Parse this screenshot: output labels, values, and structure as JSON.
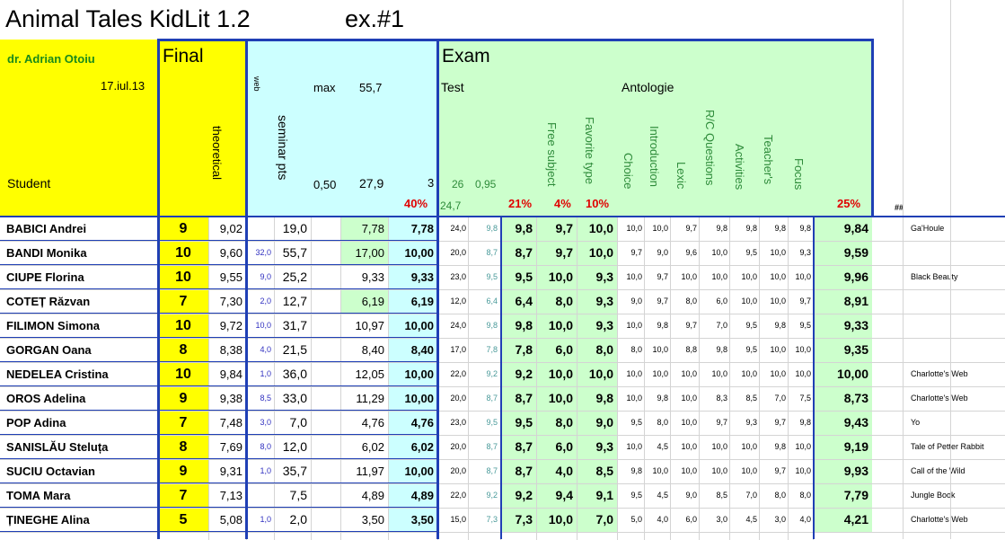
{
  "title": "Animal Tales KidLit 1.2",
  "exercise": "ex.#1",
  "author": "dr. Adrian Otoiu",
  "date": "17.iul.13",
  "student_label": "Student",
  "final_label": "Final",
  "theoretical_label": "theoretical",
  "web_label": "web",
  "seminar_label": "seminar pts",
  "max_label": "max",
  "max_value": "55,7",
  "half_label": "0,50",
  "half_value": "27,9",
  "three": "3",
  "pct_40": "40%",
  "exam_label": "Exam",
  "test_label": "Test",
  "antologie_label": "Antologie",
  "test_sub1": "26",
  "test_sub2": "0,95",
  "test_sub3": "24,7",
  "pct_21": "21%",
  "pct_4": "4%",
  "pct_10": "10%",
  "pct_25": "25%",
  "hash": "##",
  "criteria": [
    "Free subject",
    "Favorite type",
    "Choice",
    "Introduction",
    "Lexic",
    "R/C Questions",
    "Activities",
    "Teacher's",
    "Focus"
  ],
  "students": [
    {
      "name": "BABICI Andrei",
      "final": "9",
      "theor": "9,02",
      "web": "",
      "sem": "19,0",
      "pts": "7,78",
      "ptsB": "7,78",
      "t1": "24,0",
      "t2": "9,8",
      "t3": "9,8",
      "fs": "9,7",
      "ft": "10,0",
      "c": [
        "10,0",
        "10,0",
        "9,7",
        "9,8",
        "9,8",
        "9,8",
        "9,8"
      ],
      "total": "9,84",
      "book": "Ga'Houle"
    },
    {
      "name": "BANDI Monika",
      "final": "10",
      "theor": "9,60",
      "web": "32,0",
      "sem": "55,7",
      "pts": "17,00",
      "ptsB": "10,00",
      "t1": "20,0",
      "t2": "8,7",
      "t3": "8,7",
      "fs": "9,7",
      "ft": "10,0",
      "c": [
        "9,7",
        "9,0",
        "9,6",
        "10,0",
        "9,5",
        "10,0",
        "9,3"
      ],
      "total": "9,59",
      "book": ""
    },
    {
      "name": "CIUPE Florina",
      "final": "10",
      "theor": "9,55",
      "web": "9,0",
      "sem": "25,2",
      "pts": "9,33",
      "ptsB": "9,33",
      "t1": "23,0",
      "t2": "9,5",
      "t3": "9,5",
      "fs": "10,0",
      "ft": "9,3",
      "c": [
        "10,0",
        "9,7",
        "10,0",
        "10,0",
        "10,0",
        "10,0",
        "10,0"
      ],
      "total": "9,96",
      "book": "Black Beauty"
    },
    {
      "name": "COTEȚ Răzvan",
      "final": "7",
      "theor": "7,30",
      "web": "2,0",
      "sem": "12,7",
      "pts": "6,19",
      "ptsB": "6,19",
      "t1": "12,0",
      "t2": "6,4",
      "t3": "6,4",
      "fs": "8,0",
      "ft": "9,3",
      "c": [
        "9,0",
        "9,7",
        "8,0",
        "6,0",
        "10,0",
        "10,0",
        "9,7"
      ],
      "total": "8,91",
      "book": ""
    },
    {
      "name": "FILIMON Simona",
      "final": "10",
      "theor": "9,72",
      "web": "10,0",
      "sem": "31,7",
      "pts": "10,97",
      "ptsB": "10,00",
      "t1": "24,0",
      "t2": "9,8",
      "t3": "9,8",
      "fs": "10,0",
      "ft": "9,3",
      "c": [
        "10,0",
        "9,8",
        "9,7",
        "7,0",
        "9,5",
        "9,8",
        "9,5"
      ],
      "total": "9,33",
      "book": ""
    },
    {
      "name": "GORGAN Oana",
      "final": "8",
      "theor": "8,38",
      "web": "4,0",
      "sem": "21,5",
      "pts": "8,40",
      "ptsB": "8,40",
      "t1": "17,0",
      "t2": "7,8",
      "t3": "7,8",
      "fs": "6,0",
      "ft": "8,0",
      "c": [
        "8,0",
        "10,0",
        "8,8",
        "9,8",
        "9,5",
        "10,0",
        "10,0"
      ],
      "total": "9,35",
      "book": ""
    },
    {
      "name": "NEDELEA Cristina",
      "final": "10",
      "theor": "9,84",
      "web": "1,0",
      "sem": "36,0",
      "pts": "12,05",
      "ptsB": "10,00",
      "t1": "22,0",
      "t2": "9,2",
      "t3": "9,2",
      "fs": "10,0",
      "ft": "10,0",
      "c": [
        "10,0",
        "10,0",
        "10,0",
        "10,0",
        "10,0",
        "10,0",
        "10,0"
      ],
      "total": "10,00",
      "book": "Charlotte's Web"
    },
    {
      "name": "OROS Adelina",
      "final": "9",
      "theor": "9,38",
      "web": "8,5",
      "sem": "33,0",
      "pts": "11,29",
      "ptsB": "10,00",
      "t1": "20,0",
      "t2": "8,7",
      "t3": "8,7",
      "fs": "10,0",
      "ft": "9,8",
      "c": [
        "10,0",
        "9,8",
        "10,0",
        "8,3",
        "8,5",
        "7,0",
        "7,5"
      ],
      "total": "8,73",
      "book": "Charlotte's Web"
    },
    {
      "name": "POP Adina",
      "final": "7",
      "theor": "7,48",
      "web": "3,0",
      "sem": "7,0",
      "pts": "4,76",
      "ptsB": "4,76",
      "t1": "23,0",
      "t2": "9,5",
      "t3": "9,5",
      "fs": "8,0",
      "ft": "9,0",
      "c": [
        "9,5",
        "8,0",
        "10,0",
        "9,7",
        "9,3",
        "9,7",
        "9,8"
      ],
      "total": "9,43",
      "book": "Yo"
    },
    {
      "name": "SANISLĂU Steluța",
      "final": "8",
      "theor": "7,69",
      "web": "8,0",
      "sem": "12,0",
      "pts": "6,02",
      "ptsB": "6,02",
      "t1": "20,0",
      "t2": "8,7",
      "t3": "8,7",
      "fs": "6,0",
      "ft": "9,3",
      "c": [
        "10,0",
        "4,5",
        "10,0",
        "10,0",
        "10,0",
        "9,8",
        "10,0"
      ],
      "total": "9,19",
      "book": "Tale of Petter Rabbit"
    },
    {
      "name": "SUCIU Octavian",
      "final": "9",
      "theor": "9,31",
      "web": "1,0",
      "sem": "35,7",
      "pts": "11,97",
      "ptsB": "10,00",
      "t1": "20,0",
      "t2": "8,7",
      "t3": "8,7",
      "fs": "4,0",
      "ft": "8,5",
      "c": [
        "9,8",
        "10,0",
        "10,0",
        "10,0",
        "10,0",
        "9,7",
        "10,0"
      ],
      "total": "9,93",
      "book": "Call of the Wild"
    },
    {
      "name": "TOMA Mara",
      "final": "7",
      "theor": "7,13",
      "web": "",
      "sem": "7,5",
      "pts": "4,89",
      "ptsB": "4,89",
      "t1": "22,0",
      "t2": "9,2",
      "t3": "9,2",
      "fs": "9,4",
      "ft": "9,1",
      "c": [
        "9,5",
        "4,5",
        "9,0",
        "8,5",
        "7,0",
        "8,0",
        "8,0"
      ],
      "total": "7,79",
      "book": "Jungle Book"
    },
    {
      "name": "ȚINEGHE Alina",
      "final": "5",
      "theor": "5,08",
      "web": "1,0",
      "sem": "2,0",
      "pts": "3,50",
      "ptsB": "3,50",
      "t1": "15,0",
      "t2": "7,3",
      "t3": "7,3",
      "fs": "10,0",
      "ft": "7,0",
      "c": [
        "5,0",
        "4,0",
        "6,0",
        "3,0",
        "4,5",
        "3,0",
        "4,0"
      ],
      "total": "4,21",
      "book": "Charlotte's Web"
    }
  ]
}
